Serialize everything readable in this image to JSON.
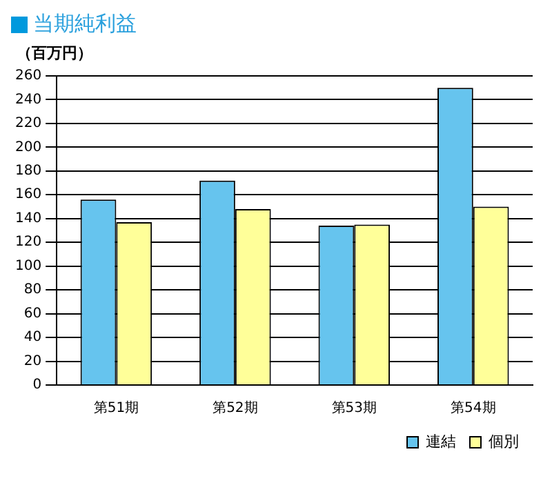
{
  "chart_data": {
    "type": "bar",
    "title": "当期純利益",
    "ylabel": "（百万円）",
    "categories": [
      "第51期",
      "第52期",
      "第53期",
      "第54期"
    ],
    "series": [
      {
        "name": "連結",
        "color": "#66c4ee",
        "values": [
          156,
          172,
          134,
          250
        ]
      },
      {
        "name": "個別",
        "color": "#ffff99",
        "values": [
          137,
          148,
          135,
          150
        ]
      }
    ],
    "ylim": [
      0,
      260
    ],
    "yticks": [
      0,
      20,
      40,
      60,
      80,
      100,
      120,
      140,
      160,
      180,
      200,
      220,
      240,
      260
    ],
    "grid": "y",
    "legend": "bottom right"
  }
}
